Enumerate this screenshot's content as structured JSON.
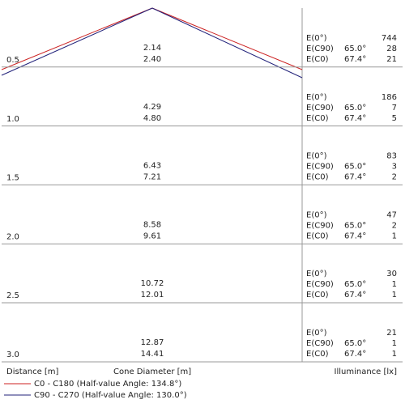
{
  "rows": [
    {
      "distance": "0.5",
      "diameter_c0": "2.14",
      "diameter_c90": "2.40",
      "e0_label": "E(0°)",
      "e0": "744",
      "c90_label": "E(C90)",
      "c90_angle": "65.0°",
      "e_c90": "28",
      "c0_label": "E(C0)",
      "c0_angle": "67.4°",
      "e_c0": "21"
    },
    {
      "distance": "1.0",
      "diameter_c0": "4.29",
      "diameter_c90": "4.80",
      "e0_label": "E(0°)",
      "e0": "186",
      "c90_label": "E(C90)",
      "c90_angle": "65.0°",
      "e_c90": "7",
      "c0_label": "E(C0)",
      "c0_angle": "67.4°",
      "e_c0": "5"
    },
    {
      "distance": "1.5",
      "diameter_c0": "6.43",
      "diameter_c90": "7.21",
      "e0_label": "E(0°)",
      "e0": "83",
      "c90_label": "E(C90)",
      "c90_angle": "65.0°",
      "e_c90": "3",
      "c0_label": "E(C0)",
      "c0_angle": "67.4°",
      "e_c0": "2"
    },
    {
      "distance": "2.0",
      "diameter_c0": "8.58",
      "diameter_c90": "9.61",
      "e0_label": "E(0°)",
      "e0": "47",
      "c90_label": "E(C90)",
      "c90_angle": "65.0°",
      "e_c90": "2",
      "c0_label": "E(C0)",
      "c0_angle": "67.4°",
      "e_c0": "1"
    },
    {
      "distance": "2.5",
      "diameter_c0": "10.72",
      "diameter_c90": "12.01",
      "e0_label": "E(0°)",
      "e0": "30",
      "c90_label": "E(C90)",
      "c90_angle": "65.0°",
      "e_c90": "1",
      "c0_label": "E(C0)",
      "c0_angle": "67.4°",
      "e_c0": "1"
    },
    {
      "distance": "3.0",
      "diameter_c0": "12.87",
      "diameter_c90": "14.41",
      "e0_label": "E(0°)",
      "e0": "21",
      "c90_label": "E(C90)",
      "c90_angle": "65.0°",
      "e_c90": "1",
      "c0_label": "E(C0)",
      "c0_angle": "67.4°",
      "e_c0": "1"
    }
  ],
  "footer": {
    "distance": "Distance [m]",
    "diameter": "Cone Diameter [m]",
    "illuminance": "Illuminance [lx]"
  },
  "legend": [
    {
      "name": "C0 - C180 (Half-value Angle: 134.8°)",
      "color": "#cc2222"
    },
    {
      "name": "C90 - C270 (Half-value Angle: 130.0°)",
      "color": "#22227a"
    }
  ]
}
